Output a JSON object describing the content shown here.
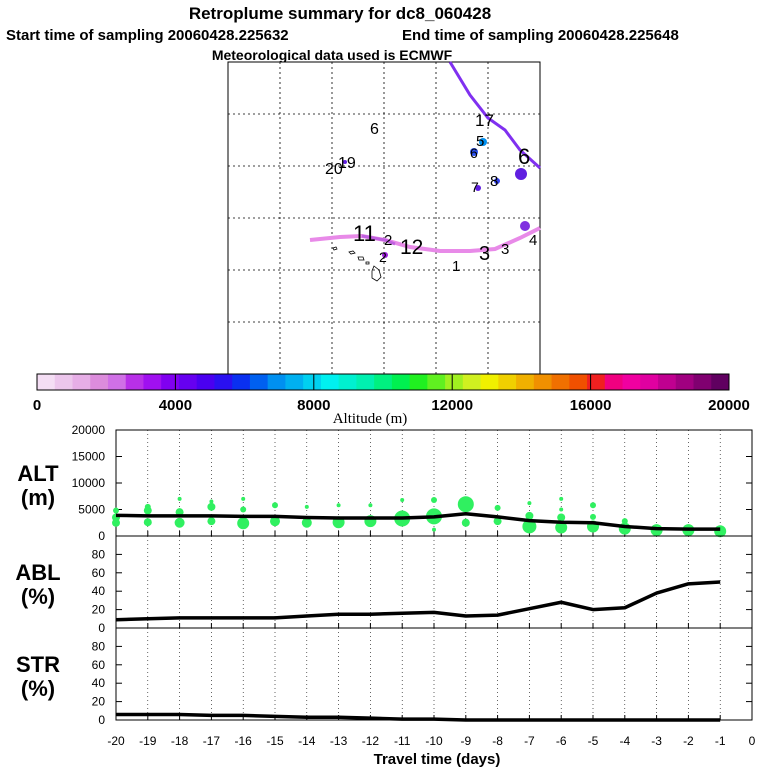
{
  "header": {
    "title": "Retroplume summary for dc8_060428",
    "start_time": "Start time of sampling 20060428.225632",
    "end_time": "End time of sampling 20060428.225648",
    "met_data": "Meteorological data used is ECMWF"
  },
  "colorbar": {
    "label": "Altitude (m)",
    "ticks": [
      "0",
      "4000",
      "8000",
      "12000",
      "16000",
      "20000"
    ],
    "colors": [
      "#f4def4",
      "#ecc6ec",
      "#e6aee6",
      "#dc8cdc",
      "#d070e6",
      "#b830e8",
      "#a010f0",
      "#8000f0",
      "#6600f0",
      "#4a00f0",
      "#2a10f0",
      "#0a30f0",
      "#0060f0",
      "#0090f0",
      "#00b0f0",
      "#00d0f0",
      "#00f0f0",
      "#00f0d0",
      "#00f0b0",
      "#00f080",
      "#00f050",
      "#20f020",
      "#60f020",
      "#a0f020",
      "#d0f020",
      "#f0f000",
      "#f0d000",
      "#f0b000",
      "#f09000",
      "#f07000",
      "#f05000",
      "#f02020",
      "#f00080",
      "#f000a0",
      "#e000a0",
      "#c00090",
      "#a00080",
      "#800070",
      "#600060"
    ]
  },
  "map": {
    "labels": [
      "6",
      "20",
      "19",
      "17",
      "5",
      "6",
      "7",
      "8",
      "6",
      "11",
      "12",
      "2",
      "3",
      "1",
      "4",
      "2",
      "3"
    ]
  },
  "chart_data": [
    {
      "type": "line",
      "panel": "ALT",
      "ylabel_line1": "ALT",
      "ylabel_line2": "(m)",
      "x": [
        -20,
        -19,
        -18,
        -17,
        -16,
        -15,
        -14,
        -13,
        -12,
        -11,
        -10,
        -9,
        -8,
        -7,
        -6,
        -5,
        -4,
        -3,
        -2,
        -1
      ],
      "ylim": [
        0,
        20000
      ],
      "yticks": [
        "0",
        "5000",
        "10000",
        "15000",
        "20000"
      ],
      "series": [
        {
          "name": "median altitude",
          "values": [
            3900,
            3800,
            3800,
            3800,
            3700,
            3700,
            3500,
            3400,
            3400,
            3400,
            3600,
            4200,
            3600,
            2900,
            2600,
            2500,
            1800,
            1400,
            1300,
            1300
          ]
        }
      ],
      "scatter": [
        {
          "x": -20,
          "y": 3500,
          "s": 4
        },
        {
          "x": -20,
          "y": 2500,
          "s": 4
        },
        {
          "x": -20,
          "y": 4800,
          "s": 3
        },
        {
          "x": -19,
          "y": 2600,
          "s": 4
        },
        {
          "x": -19,
          "y": 4800,
          "s": 4
        },
        {
          "x": -19,
          "y": 5500,
          "s": 3
        },
        {
          "x": -18,
          "y": 2500,
          "s": 5
        },
        {
          "x": -18,
          "y": 4500,
          "s": 4
        },
        {
          "x": -18,
          "y": 7000,
          "s": 2
        },
        {
          "x": -17,
          "y": 2800,
          "s": 4
        },
        {
          "x": -17,
          "y": 5500,
          "s": 4
        },
        {
          "x": -17,
          "y": 6500,
          "s": 2
        },
        {
          "x": -16,
          "y": 2400,
          "s": 6
        },
        {
          "x": -16,
          "y": 5000,
          "s": 3
        },
        {
          "x": -16,
          "y": 7000,
          "s": 2
        },
        {
          "x": -15,
          "y": 2800,
          "s": 5
        },
        {
          "x": -15,
          "y": 5800,
          "s": 3
        },
        {
          "x": -14,
          "y": 2500,
          "s": 5
        },
        {
          "x": -14,
          "y": 5500,
          "s": 2
        },
        {
          "x": -13,
          "y": 2600,
          "s": 6
        },
        {
          "x": -13,
          "y": 5800,
          "s": 2
        },
        {
          "x": -12,
          "y": 2800,
          "s": 6
        },
        {
          "x": -12,
          "y": 5800,
          "s": 2
        },
        {
          "x": -11,
          "y": 3300,
          "s": 8
        },
        {
          "x": -11,
          "y": 6800,
          "s": 2
        },
        {
          "x": -10,
          "y": 3700,
          "s": 8
        },
        {
          "x": -10,
          "y": 6800,
          "s": 3
        },
        {
          "x": -10,
          "y": 1200,
          "s": 2
        },
        {
          "x": -9,
          "y": 6000,
          "s": 8
        },
        {
          "x": -9,
          "y": 2500,
          "s": 4
        },
        {
          "x": -8,
          "y": 2800,
          "s": 4
        },
        {
          "x": -8,
          "y": 5300,
          "s": 3
        },
        {
          "x": -7,
          "y": 1800,
          "s": 7
        },
        {
          "x": -7,
          "y": 3800,
          "s": 4
        },
        {
          "x": -7,
          "y": 6200,
          "s": 2
        },
        {
          "x": -6,
          "y": 1600,
          "s": 6
        },
        {
          "x": -6,
          "y": 3500,
          "s": 4
        },
        {
          "x": -6,
          "y": 5000,
          "s": 2
        },
        {
          "x": -6,
          "y": 7000,
          "s": 2
        },
        {
          "x": -5,
          "y": 1800,
          "s": 6
        },
        {
          "x": -5,
          "y": 3600,
          "s": 3
        },
        {
          "x": -5,
          "y": 5800,
          "s": 3
        },
        {
          "x": -4,
          "y": 1400,
          "s": 6
        },
        {
          "x": -4,
          "y": 2800,
          "s": 3
        },
        {
          "x": -3,
          "y": 1100,
          "s": 6
        },
        {
          "x": -2,
          "y": 1100,
          "s": 6
        },
        {
          "x": -1,
          "y": 900,
          "s": 6
        }
      ]
    },
    {
      "type": "line",
      "panel": "ABL",
      "ylabel_line1": "ABL",
      "ylabel_line2": "(%)",
      "x": [
        -20,
        -19,
        -18,
        -17,
        -16,
        -15,
        -14,
        -13,
        -12,
        -11,
        -10,
        -9,
        -8,
        -7,
        -6,
        -5,
        -4,
        -3,
        -2,
        -1
      ],
      "ylim": [
        0,
        100
      ],
      "yticks": [
        "0",
        "20",
        "40",
        "60",
        "80"
      ],
      "series": [
        {
          "name": "ABL fraction",
          "values": [
            9,
            10,
            11,
            11,
            11,
            11,
            13,
            15,
            15,
            16,
            17,
            13,
            14,
            21,
            28,
            20,
            22,
            38,
            48,
            50
          ]
        }
      ]
    },
    {
      "type": "line",
      "panel": "STR",
      "ylabel_line1": "STR",
      "ylabel_line2": "(%)",
      "x": [
        -20,
        -19,
        -18,
        -17,
        -16,
        -15,
        -14,
        -13,
        -12,
        -11,
        -10,
        -9,
        -8,
        -7,
        -6,
        -5,
        -4,
        -3,
        -2,
        -1
      ],
      "ylim": [
        0,
        100
      ],
      "yticks": [
        "0",
        "20",
        "40",
        "60",
        "80"
      ],
      "series": [
        {
          "name": "stratospheric fraction",
          "values": [
            6,
            6,
            6,
            5,
            5,
            4,
            3,
            3,
            2,
            1,
            1,
            0,
            0,
            0,
            0,
            0,
            0,
            0,
            0,
            0
          ]
        }
      ],
      "xlabel": "Travel time (days)",
      "xticks": [
        "-20",
        "-19",
        "-18",
        "-17",
        "-16",
        "-15",
        "-14",
        "-13",
        "-12",
        "-11",
        "-10",
        "-9",
        "-8",
        "-7",
        "-6",
        "-5",
        "-4",
        "-3",
        "-2",
        "-1",
        "0"
      ]
    }
  ]
}
